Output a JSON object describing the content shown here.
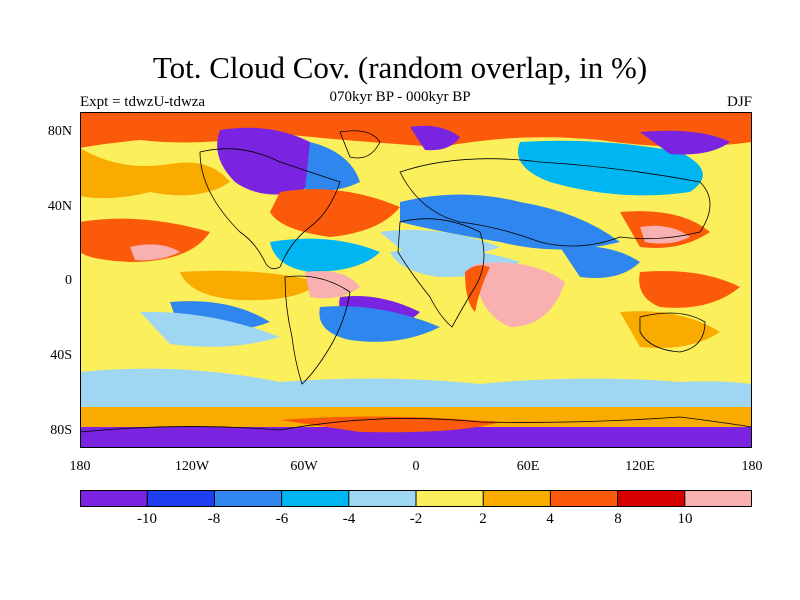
{
  "title": "Tot. Cloud Cov. (random overlap, in %)",
  "subtitle": "070kyr BP - 000kyr BP",
  "experiment": "Expt = tdwzU-tdwza",
  "season": "DJF",
  "lat_ticks": [
    "80N",
    "40N",
    "0",
    "40S",
    "80S"
  ],
  "lon_ticks": [
    "180",
    "120W",
    "60W",
    "0",
    "60E",
    "120E",
    "180"
  ],
  "colorbar": {
    "colors": [
      "#7a23e0",
      "#1f3ff0",
      "#2f86ee",
      "#00b6f2",
      "#9fd6f2",
      "#fbef5c",
      "#f9ab00",
      "#fb5a0a",
      "#d60000",
      "#f9b0b0"
    ],
    "labels": [
      "-10",
      "-8",
      "-6",
      "-4",
      "-2",
      "2",
      "4",
      "8",
      "10"
    ]
  }
}
